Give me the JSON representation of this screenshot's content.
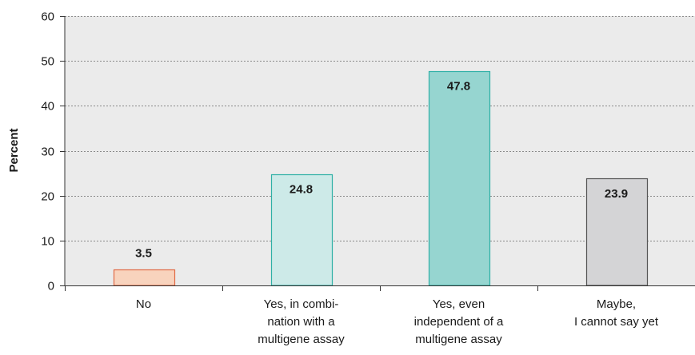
{
  "chart_data": {
    "type": "bar",
    "title": "",
    "xlabel": "",
    "ylabel": "Percent",
    "ylim": [
      0,
      60
    ],
    "yticks": [
      0,
      10,
      20,
      30,
      40,
      50,
      60
    ],
    "grid": true,
    "categories": [
      [
        "No"
      ],
      [
        "Yes, in combi-",
        "nation with a",
        "multigene assay"
      ],
      [
        "Yes, even",
        "independent of a",
        "multigene assay"
      ],
      [
        "Maybe,",
        "I cannot say yet"
      ]
    ],
    "values": [
      3.5,
      24.8,
      47.8,
      23.9
    ],
    "data_labels": [
      "3.5",
      "24.8",
      "47.8",
      "23.9"
    ],
    "bar_fill_colors": [
      "#f8d3bd",
      "#cdeae8",
      "#96d5d0",
      "#d4d4d6"
    ],
    "bar_stroke_colors": [
      "#e06a45",
      "#2fb0a6",
      "#2fb0a6",
      "#555555"
    ],
    "plot_background": "#ebebeb"
  }
}
